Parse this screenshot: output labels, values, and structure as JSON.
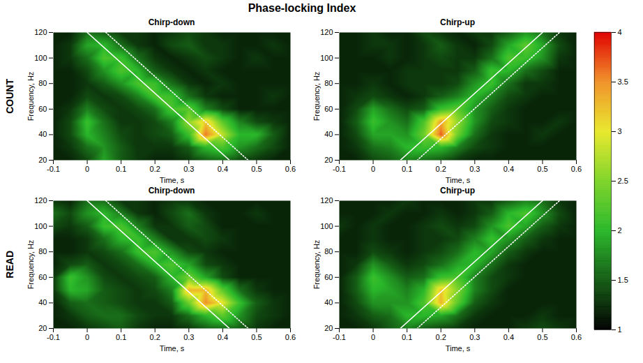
{
  "chart_data": {
    "type": "heatmap",
    "title": "Phase-locking Index",
    "row_labels": [
      "COUNT",
      "READ"
    ],
    "colorbar": {
      "lim": [
        1,
        4
      ],
      "ticks": [
        1,
        1.5,
        2,
        2.5,
        3,
        3.5,
        4
      ]
    },
    "panels": [
      {
        "title": "Chirp-down",
        "row": "COUNT",
        "xlabel": "Time, s",
        "ylabel": "Frequency, Hz",
        "xlim": [
          -0.1,
          0.6
        ],
        "xticks": [
          -0.1,
          0,
          0.1,
          0.2,
          0.3,
          0.4,
          0.5,
          0.6
        ],
        "ylim": [
          20,
          120
        ],
        "yticks": [
          20,
          40,
          60,
          80,
          100,
          120
        ],
        "time": [
          -0.1,
          -0.05,
          0,
          0.05,
          0.1,
          0.15,
          0.2,
          0.25,
          0.3,
          0.35,
          0.4,
          0.45,
          0.5,
          0.55,
          0.6
        ],
        "frequency": [
          120,
          110,
          100,
          90,
          80,
          70,
          60,
          50,
          40,
          30,
          20
        ],
        "pli": [
          [
            1.2,
            1.2,
            1.6,
            1.5,
            1.3,
            1.3,
            1.2,
            1.3,
            1.4,
            1.3,
            1.2,
            1.2,
            1.2,
            1.2,
            1.2
          ],
          [
            1.2,
            1.3,
            1.9,
            2.0,
            1.6,
            1.3,
            1.2,
            1.4,
            1.5,
            1.3,
            1.3,
            1.2,
            1.2,
            1.3,
            1.2
          ],
          [
            1.2,
            1.3,
            1.6,
            2.2,
            2.1,
            1.6,
            1.3,
            1.2,
            1.3,
            1.4,
            1.3,
            1.2,
            1.3,
            1.2,
            1.2
          ],
          [
            1.2,
            1.2,
            1.4,
            1.8,
            2.2,
            2.0,
            1.5,
            1.3,
            1.2,
            1.3,
            1.2,
            1.2,
            1.2,
            1.2,
            1.2
          ],
          [
            1.2,
            1.2,
            1.3,
            1.5,
            1.8,
            2.2,
            2.1,
            1.6,
            1.3,
            1.2,
            1.3,
            1.2,
            1.2,
            1.2,
            1.2
          ],
          [
            1.2,
            1.2,
            1.4,
            1.3,
            1.4,
            1.7,
            2.2,
            2.1,
            1.6,
            1.3,
            1.2,
            1.2,
            1.2,
            1.3,
            1.2
          ],
          [
            1.2,
            1.3,
            1.7,
            1.4,
            1.3,
            1.4,
            1.6,
            2.2,
            2.3,
            1.7,
            1.4,
            1.2,
            1.2,
            1.2,
            1.2
          ],
          [
            1.2,
            1.4,
            2.1,
            1.6,
            1.3,
            1.3,
            1.4,
            1.7,
            2.6,
            3.2,
            2.3,
            1.7,
            1.4,
            1.3,
            1.2
          ],
          [
            1.2,
            1.4,
            2.0,
            1.7,
            1.4,
            1.3,
            1.4,
            1.5,
            2.1,
            3.6,
            2.8,
            2.0,
            2.0,
            1.5,
            1.2
          ],
          [
            1.2,
            1.3,
            1.6,
            1.8,
            1.5,
            1.3,
            1.3,
            1.3,
            1.5,
            2.0,
            2.2,
            1.8,
            1.6,
            1.4,
            1.2
          ],
          [
            1.2,
            1.2,
            1.4,
            1.9,
            1.5,
            1.3,
            1.2,
            1.2,
            1.3,
            1.5,
            1.6,
            1.4,
            1.3,
            1.2,
            1.2
          ]
        ],
        "lines": [
          {
            "line_style": "solid",
            "color": "#ffffff",
            "x": [
              0,
              0.42
            ],
            "y": [
              120,
              20
            ]
          },
          {
            "line_style": "dotted",
            "color": "#ffffff",
            "x": [
              0.055,
              0.475
            ],
            "y": [
              120,
              20
            ]
          }
        ]
      },
      {
        "title": "Chirp-up",
        "row": "COUNT",
        "xlabel": "Time, s",
        "ylabel": "Frequency, Hz",
        "xlim": [
          -0.1,
          0.6
        ],
        "xticks": [
          -0.1,
          0,
          0.1,
          0.2,
          0.3,
          0.4,
          0.5,
          0.6
        ],
        "ylim": [
          20,
          120
        ],
        "yticks": [
          20,
          40,
          60,
          80,
          100,
          120
        ],
        "time": [
          -0.1,
          -0.05,
          0,
          0.05,
          0.1,
          0.15,
          0.2,
          0.25,
          0.3,
          0.35,
          0.4,
          0.45,
          0.5,
          0.55,
          0.6
        ],
        "frequency": [
          120,
          110,
          100,
          90,
          80,
          70,
          60,
          50,
          40,
          30,
          20
        ],
        "pli": [
          [
            1.2,
            1.2,
            1.3,
            1.2,
            1.2,
            1.4,
            1.3,
            1.2,
            1.3,
            1.3,
            1.5,
            1.8,
            1.6,
            1.3,
            1.2
          ],
          [
            1.2,
            1.2,
            1.3,
            1.3,
            1.2,
            1.3,
            1.5,
            1.3,
            1.2,
            1.4,
            1.9,
            2.3,
            1.9,
            1.4,
            1.2
          ],
          [
            1.2,
            1.2,
            1.2,
            1.3,
            1.2,
            1.3,
            1.4,
            1.3,
            1.3,
            1.6,
            2.2,
            2.1,
            1.8,
            1.3,
            1.2
          ],
          [
            1.2,
            1.2,
            1.2,
            1.2,
            1.3,
            1.3,
            1.3,
            1.3,
            1.5,
            2.1,
            2.0,
            1.6,
            1.4,
            1.2,
            1.2
          ],
          [
            1.2,
            1.2,
            1.3,
            1.2,
            1.3,
            1.3,
            1.3,
            1.4,
            1.8,
            2.1,
            1.6,
            1.3,
            1.3,
            1.2,
            1.2
          ],
          [
            1.2,
            1.3,
            1.4,
            1.3,
            1.2,
            1.3,
            1.5,
            1.7,
            2.0,
            1.7,
            1.4,
            1.3,
            1.2,
            1.2,
            1.2
          ],
          [
            1.2,
            1.4,
            1.9,
            1.6,
            1.4,
            1.5,
            2.1,
            2.3,
            1.8,
            1.5,
            1.3,
            1.2,
            1.2,
            1.2,
            1.2
          ],
          [
            1.2,
            1.5,
            2.1,
            1.8,
            1.6,
            2.2,
            3.4,
            2.6,
            1.8,
            1.4,
            1.3,
            1.2,
            1.2,
            1.3,
            1.2
          ],
          [
            1.2,
            1.4,
            1.9,
            1.9,
            1.8,
            2.4,
            3.7,
            2.4,
            1.6,
            1.3,
            1.2,
            1.2,
            1.3,
            1.2,
            1.2
          ],
          [
            1.2,
            1.3,
            1.6,
            1.7,
            2.0,
            2.1,
            2.0,
            1.7,
            1.4,
            1.3,
            1.2,
            1.2,
            1.2,
            1.2,
            1.2
          ],
          [
            1.2,
            1.2,
            1.4,
            1.5,
            1.7,
            1.6,
            1.5,
            1.3,
            1.2,
            1.2,
            1.2,
            1.2,
            1.2,
            1.2,
            1.2
          ]
        ],
        "lines": [
          {
            "line_style": "solid",
            "color": "#ffffff",
            "x": [
              0.08,
              0.5
            ],
            "y": [
              20,
              120
            ]
          },
          {
            "line_style": "dotted",
            "color": "#ffffff",
            "x": [
              0.13,
              0.55
            ],
            "y": [
              20,
              120
            ]
          }
        ]
      },
      {
        "title": "Chirp-down",
        "row": "READ",
        "xlabel": "Time, s",
        "ylabel": "Frequency, Hz",
        "xlim": [
          -0.1,
          0.6
        ],
        "xticks": [
          -0.1,
          0,
          0.1,
          0.2,
          0.3,
          0.4,
          0.5,
          0.6
        ],
        "ylim": [
          20,
          120
        ],
        "yticks": [
          20,
          40,
          60,
          80,
          100,
          120
        ],
        "time": [
          -0.1,
          -0.05,
          0,
          0.05,
          0.1,
          0.15,
          0.2,
          0.25,
          0.3,
          0.35,
          0.4,
          0.45,
          0.5,
          0.55,
          0.6
        ],
        "frequency": [
          120,
          110,
          100,
          90,
          80,
          70,
          60,
          50,
          40,
          30,
          20
        ],
        "pli": [
          [
            1.3,
            1.2,
            1.6,
            1.6,
            1.3,
            1.3,
            1.2,
            1.3,
            1.3,
            1.2,
            1.2,
            1.2,
            1.2,
            1.2,
            1.2
          ],
          [
            1.6,
            1.4,
            1.8,
            2.0,
            1.7,
            1.3,
            1.2,
            1.4,
            1.6,
            1.3,
            1.2,
            1.2,
            1.3,
            1.2,
            1.2
          ],
          [
            1.4,
            1.3,
            1.5,
            2.1,
            2.2,
            1.7,
            1.3,
            1.3,
            1.5,
            1.4,
            1.2,
            1.2,
            1.2,
            1.2,
            1.2
          ],
          [
            1.2,
            1.2,
            1.3,
            1.6,
            2.0,
            2.1,
            1.7,
            1.3,
            1.3,
            1.4,
            1.3,
            1.2,
            1.2,
            1.2,
            1.2
          ],
          [
            1.2,
            1.2,
            1.3,
            1.4,
            1.6,
            2.1,
            2.2,
            1.8,
            1.4,
            1.3,
            1.2,
            1.2,
            1.2,
            1.2,
            1.2
          ],
          [
            1.2,
            1.4,
            1.5,
            1.3,
            1.4,
            1.6,
            2.0,
            2.2,
            1.9,
            1.4,
            1.3,
            1.2,
            1.2,
            1.2,
            1.2
          ],
          [
            1.3,
            2.1,
            1.8,
            1.4,
            1.3,
            1.4,
            1.5,
            2.0,
            2.4,
            1.9,
            1.4,
            1.2,
            1.2,
            1.2,
            1.2
          ],
          [
            1.3,
            2.0,
            1.9,
            1.5,
            1.4,
            1.3,
            1.4,
            1.7,
            3.3,
            3.3,
            2.3,
            1.6,
            1.3,
            1.2,
            1.2
          ],
          [
            1.2,
            1.5,
            1.6,
            1.5,
            1.4,
            1.3,
            1.3,
            1.5,
            2.4,
            3.5,
            3.0,
            2.1,
            1.5,
            1.3,
            1.2
          ],
          [
            1.2,
            1.3,
            1.5,
            1.6,
            1.6,
            1.4,
            1.3,
            1.3,
            1.6,
            2.0,
            2.3,
            1.8,
            1.4,
            1.3,
            1.2
          ],
          [
            1.2,
            1.2,
            1.3,
            1.4,
            1.5,
            1.3,
            1.2,
            1.2,
            1.3,
            1.5,
            1.6,
            1.5,
            1.3,
            1.2,
            1.2
          ]
        ],
        "lines": [
          {
            "line_style": "solid",
            "color": "#ffffff",
            "x": [
              0,
              0.42
            ],
            "y": [
              120,
              20
            ]
          },
          {
            "line_style": "dotted",
            "color": "#ffffff",
            "x": [
              0.055,
              0.475
            ],
            "y": [
              120,
              20
            ]
          }
        ]
      },
      {
        "title": "Chirp-up",
        "row": "READ",
        "xlabel": "Time, s",
        "ylabel": "Frequency, Hz",
        "xlim": [
          -0.1,
          0.6
        ],
        "xticks": [
          -0.1,
          0,
          0.1,
          0.2,
          0.3,
          0.4,
          0.5,
          0.6
        ],
        "ylim": [
          20,
          120
        ],
        "yticks": [
          20,
          40,
          60,
          80,
          100,
          120
        ],
        "time": [
          -0.1,
          -0.05,
          0,
          0.05,
          0.1,
          0.15,
          0.2,
          0.25,
          0.3,
          0.35,
          0.4,
          0.45,
          0.5,
          0.55,
          0.6
        ],
        "frequency": [
          120,
          110,
          100,
          90,
          80,
          70,
          60,
          50,
          40,
          30,
          20
        ],
        "pli": [
          [
            1.2,
            1.2,
            1.2,
            1.2,
            1.3,
            1.2,
            1.2,
            1.2,
            1.3,
            1.3,
            1.5,
            1.7,
            1.6,
            1.3,
            1.2
          ],
          [
            1.2,
            1.2,
            1.2,
            1.3,
            1.2,
            1.2,
            1.3,
            1.2,
            1.3,
            1.5,
            2.0,
            2.2,
            1.8,
            1.4,
            1.2
          ],
          [
            1.3,
            1.2,
            1.3,
            1.2,
            1.2,
            1.3,
            1.4,
            1.3,
            1.4,
            1.8,
            2.2,
            1.9,
            1.5,
            1.3,
            1.2
          ],
          [
            1.2,
            1.2,
            1.3,
            1.2,
            1.2,
            1.3,
            1.3,
            1.4,
            1.7,
            2.1,
            1.8,
            1.5,
            1.3,
            1.2,
            1.2
          ],
          [
            1.2,
            1.2,
            1.4,
            1.3,
            1.2,
            1.3,
            1.4,
            1.6,
            2.0,
            1.9,
            1.5,
            1.3,
            1.2,
            1.2,
            1.2
          ],
          [
            1.2,
            1.3,
            1.8,
            1.5,
            1.3,
            1.4,
            1.6,
            1.9,
            2.0,
            1.6,
            1.3,
            1.2,
            1.2,
            1.2,
            1.2
          ],
          [
            1.2,
            1.5,
            2.1,
            1.8,
            1.5,
            1.6,
            2.1,
            2.2,
            1.7,
            1.4,
            1.3,
            1.2,
            1.2,
            1.2,
            1.2
          ],
          [
            1.2,
            1.5,
            2.0,
            1.9,
            1.7,
            2.0,
            3.2,
            2.5,
            1.7,
            1.4,
            1.2,
            1.2,
            1.2,
            1.2,
            1.2
          ],
          [
            1.2,
            1.4,
            1.8,
            1.8,
            1.8,
            2.2,
            3.3,
            2.3,
            1.5,
            1.3,
            1.2,
            1.2,
            1.2,
            1.2,
            1.2
          ],
          [
            1.2,
            1.3,
            1.5,
            1.6,
            2.0,
            2.0,
            1.9,
            1.6,
            1.3,
            1.2,
            1.2,
            1.2,
            1.3,
            1.2,
            1.2
          ],
          [
            1.2,
            1.2,
            1.3,
            1.5,
            1.7,
            1.5,
            1.4,
            1.3,
            1.2,
            1.2,
            1.2,
            1.3,
            1.4,
            1.3,
            1.2
          ]
        ],
        "lines": [
          {
            "line_style": "solid",
            "color": "#ffffff",
            "x": [
              0.08,
              0.5
            ],
            "y": [
              20,
              120
            ]
          },
          {
            "line_style": "dotted",
            "color": "#ffffff",
            "x": [
              0.13,
              0.55
            ],
            "y": [
              20,
              120
            ]
          }
        ]
      }
    ]
  }
}
